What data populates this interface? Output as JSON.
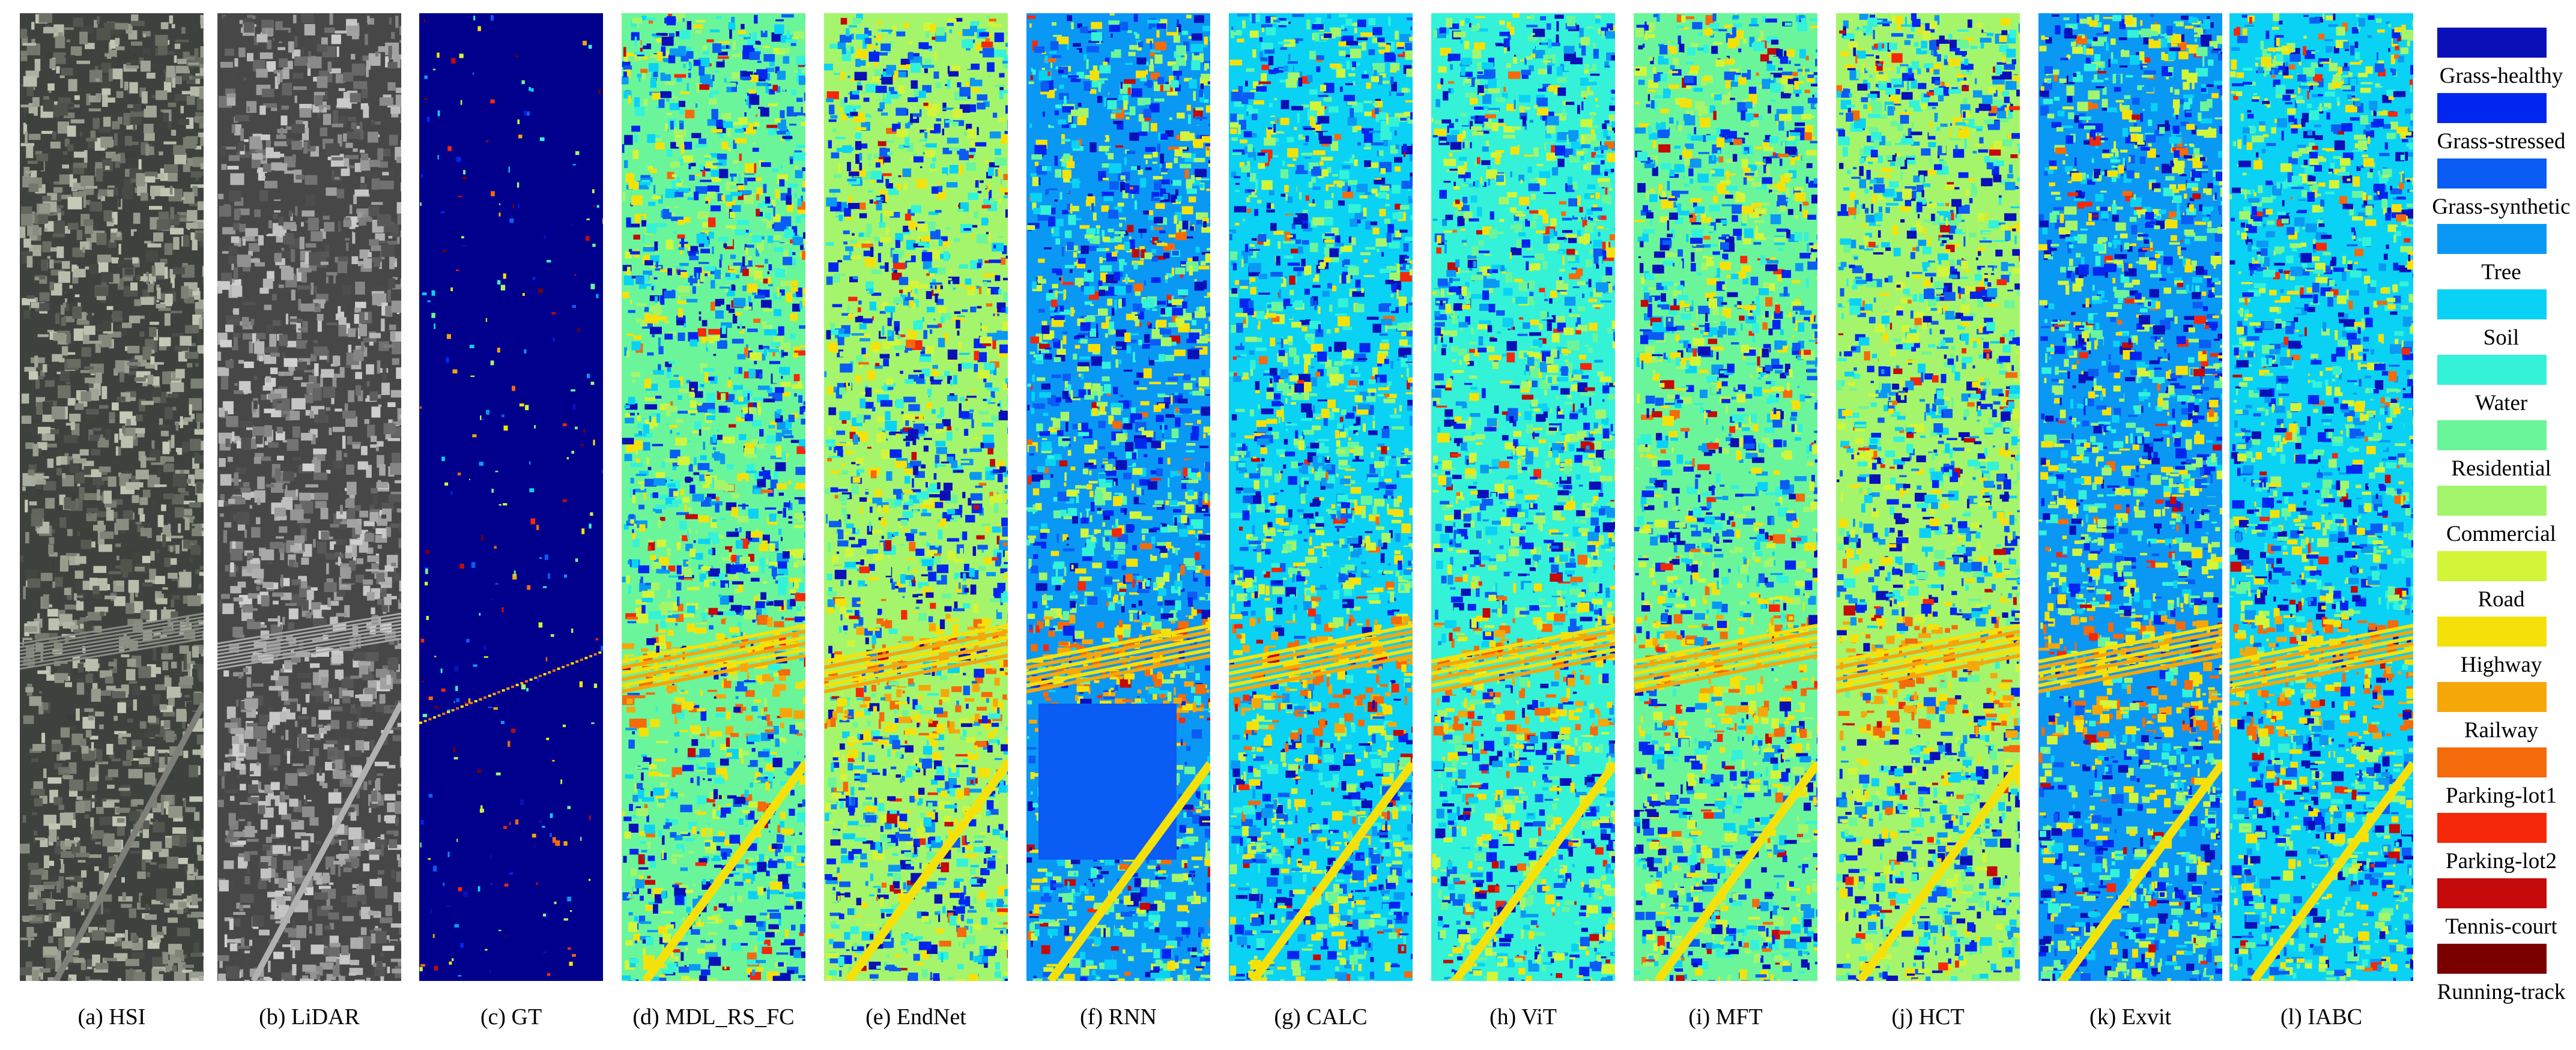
{
  "panels": [
    {
      "caption": "(a) HSI",
      "kind": "hsi"
    },
    {
      "caption": "(b) LiDAR",
      "kind": "lidar"
    },
    {
      "caption": "(c) GT",
      "kind": "gt"
    },
    {
      "caption": "(d) MDL_RS_FC",
      "kind": "map"
    },
    {
      "caption": "(e) EndNet",
      "kind": "map"
    },
    {
      "caption": "(f) RNN",
      "kind": "map"
    },
    {
      "caption": "(g) CALC",
      "kind": "map"
    },
    {
      "caption": "(h) ViT",
      "kind": "map"
    },
    {
      "caption": "(i) MFT",
      "kind": "map"
    },
    {
      "caption": "(j) HCT",
      "kind": "map"
    },
    {
      "caption": "(k) Exvit",
      "kind": "map"
    },
    {
      "caption": "(l) IABC",
      "kind": "map"
    }
  ],
  "legend": [
    {
      "label": "Grass-healthy",
      "color": "#0a10b8"
    },
    {
      "label": "Grass-stressed",
      "color": "#0026f0"
    },
    {
      "label": "Grass-synthetic",
      "color": "#0a5cf5"
    },
    {
      "label": "Tree",
      "color": "#0a98f5"
    },
    {
      "label": "Soil",
      "color": "#0ad2f5"
    },
    {
      "label": "Water",
      "color": "#33f2d8"
    },
    {
      "label": "Residential",
      "color": "#6bf59a"
    },
    {
      "label": "Commercial",
      "color": "#a4f56b"
    },
    {
      "label": "Road",
      "color": "#d2f53a"
    },
    {
      "label": "Highway",
      "color": "#f5e10a"
    },
    {
      "label": "Railway",
      "color": "#f5a70a"
    },
    {
      "label": "Parking-lot1",
      "color": "#f56a0a"
    },
    {
      "label": "Parking-lot2",
      "color": "#f5280a"
    },
    {
      "label": "Tennis-court",
      "color": "#c40a0a"
    },
    {
      "label": "Running-track",
      "color": "#7a0000"
    }
  ]
}
